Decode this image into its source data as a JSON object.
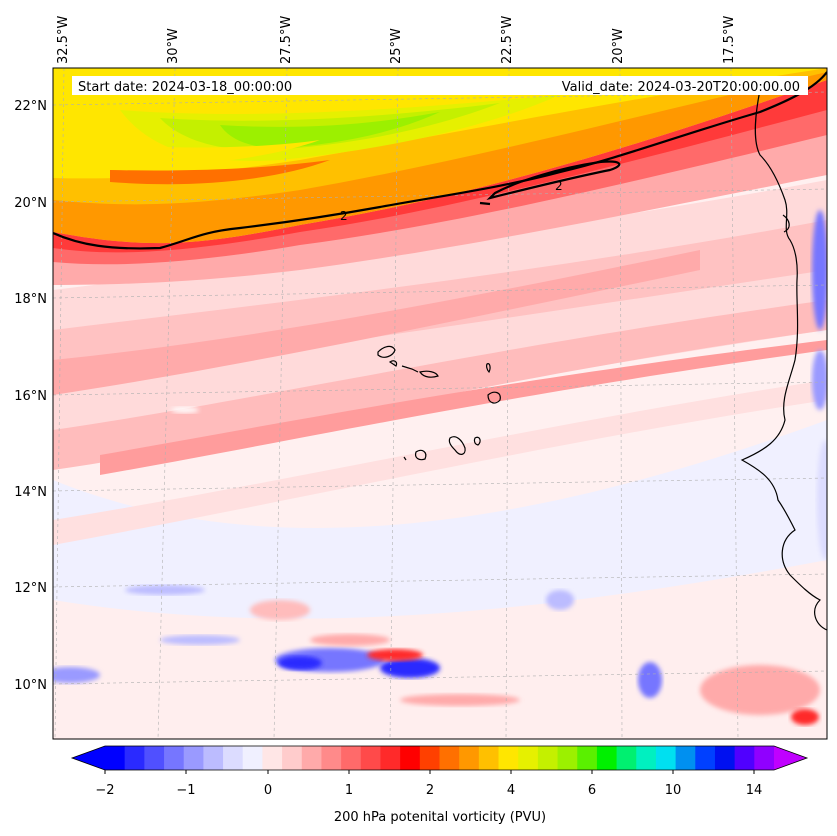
{
  "map": {
    "start_date": "Start date: 2024-03-18_00:00:00",
    "valid_date": "Valid_date: 2024-03-20T20:00:00.00",
    "lon_labels": [
      "32.5°W",
      "30°W",
      "27.5°W",
      "25°W",
      "22.5°W",
      "20°W",
      "17.5°W"
    ],
    "lat_labels": [
      "22°N",
      "20°N",
      "18°N",
      "16°N",
      "14°N",
      "12°N",
      "10°N"
    ],
    "contour_label": "2",
    "colorbar": {
      "tick_labels": [
        "−2",
        "−1",
        "0",
        "1",
        "2",
        "4",
        "6",
        "10",
        "14"
      ],
      "label": "200 hPa potenital vorticity (PVU)",
      "colors": [
        "#0000ff",
        "#2a2aff",
        "#5050ff",
        "#7676ff",
        "#9a9aff",
        "#bcbcff",
        "#dcdcff",
        "#f0f0ff",
        "#ffe6e6",
        "#ffcccc",
        "#ffaaaa",
        "#ff8a8a",
        "#ff6a6a",
        "#ff4a4a",
        "#ff2a2a",
        "#ff0000",
        "#ff4000",
        "#ff7000",
        "#ff9800",
        "#ffc000",
        "#ffe600",
        "#e6f000",
        "#c4f000",
        "#9cf000",
        "#5af000",
        "#00f000",
        "#00f070",
        "#00f0c0",
        "#00e0f0",
        "#0090f0",
        "#0040ff",
        "#0010f0",
        "#5000ff",
        "#9000ff"
      ],
      "under_color": "#0000ff",
      "over_color": "#c000ff"
    },
    "colors": {
      "contour": "#000000",
      "coast": "#000000",
      "grid": "#b0b0b0"
    }
  }
}
